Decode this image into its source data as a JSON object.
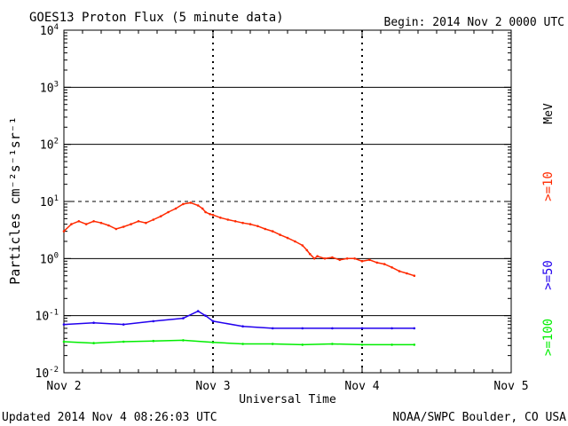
{
  "chart_data": {
    "type": "line",
    "title": "GOES13 Proton Flux (5 minute data)",
    "begin_label": "Begin: 2014 Nov 2 0000 UTC",
    "xlabel": "Universal Time",
    "ylabel": "Particles cm⁻²s⁻¹sr⁻¹",
    "unit_label": "MeV",
    "updated": "Updated 2014 Nov  4 08:26:03 UTC",
    "source": "NOAA/SWPC Boulder, CO USA",
    "x_ticks": [
      "Nov 2",
      "Nov 3",
      "Nov 4",
      "Nov 5"
    ],
    "xlim_days": [
      0,
      3
    ],
    "ylim_log10": [
      -2,
      4
    ],
    "y_ticks": [
      {
        "base": "10",
        "exp": "4"
      },
      {
        "base": "10",
        "exp": "3"
      },
      {
        "base": "10",
        "exp": "2"
      },
      {
        "base": "10",
        "exp": "1"
      },
      {
        "base": "10",
        "exp": "0"
      },
      {
        "base": "10",
        "exp": "-1"
      },
      {
        "base": "10",
        "exp": "-2"
      }
    ],
    "grid_solid_decades": [
      3,
      2,
      0,
      -1
    ],
    "grid_dashed_decades": [
      1
    ],
    "day_markers": [
      1,
      2
    ],
    "series": [
      {
        "name": ">=10",
        "color": "#ff2a00",
        "x_days": [
          0.0,
          0.05,
          0.1,
          0.15,
          0.2,
          0.25,
          0.3,
          0.35,
          0.4,
          0.45,
          0.5,
          0.55,
          0.6,
          0.65,
          0.7,
          0.75,
          0.8,
          0.85,
          0.9,
          0.93,
          0.95,
          0.98,
          1.0,
          1.05,
          1.1,
          1.15,
          1.2,
          1.25,
          1.3,
          1.35,
          1.4,
          1.45,
          1.5,
          1.55,
          1.6,
          1.63,
          1.65,
          1.68,
          1.7,
          1.75,
          1.8,
          1.85,
          1.9,
          1.95,
          2.0,
          2.05,
          2.1,
          2.15,
          2.2,
          2.25,
          2.3,
          2.35
        ],
        "values": [
          3.0,
          4.0,
          4.5,
          4.0,
          4.5,
          4.2,
          3.8,
          3.3,
          3.6,
          4.0,
          4.5,
          4.2,
          4.8,
          5.5,
          6.5,
          7.5,
          9.0,
          9.5,
          8.5,
          7.5,
          6.5,
          6.0,
          5.8,
          5.2,
          4.8,
          4.5,
          4.2,
          4.0,
          3.7,
          3.3,
          3.0,
          2.6,
          2.3,
          2.0,
          1.7,
          1.4,
          1.2,
          1.0,
          1.1,
          1.0,
          1.05,
          0.95,
          1.0,
          1.0,
          0.9,
          0.95,
          0.85,
          0.8,
          0.7,
          0.6,
          0.55,
          0.5
        ]
      },
      {
        "name": ">=50",
        "color": "#2200ee",
        "x_days": [
          0.0,
          0.2,
          0.4,
          0.6,
          0.8,
          0.9,
          0.95,
          1.0,
          1.2,
          1.4,
          1.6,
          1.8,
          2.0,
          2.2,
          2.35
        ],
        "values": [
          0.07,
          0.075,
          0.07,
          0.08,
          0.09,
          0.12,
          0.1,
          0.08,
          0.065,
          0.06,
          0.06,
          0.06,
          0.06,
          0.06,
          0.06
        ]
      },
      {
        "name": ">=100",
        "color": "#00ee00",
        "x_days": [
          0.0,
          0.2,
          0.4,
          0.6,
          0.8,
          1.0,
          1.2,
          1.4,
          1.6,
          1.8,
          2.0,
          2.2,
          2.35
        ],
        "values": [
          0.035,
          0.033,
          0.035,
          0.036,
          0.037,
          0.034,
          0.032,
          0.032,
          0.031,
          0.032,
          0.031,
          0.031,
          0.031
        ]
      }
    ]
  }
}
